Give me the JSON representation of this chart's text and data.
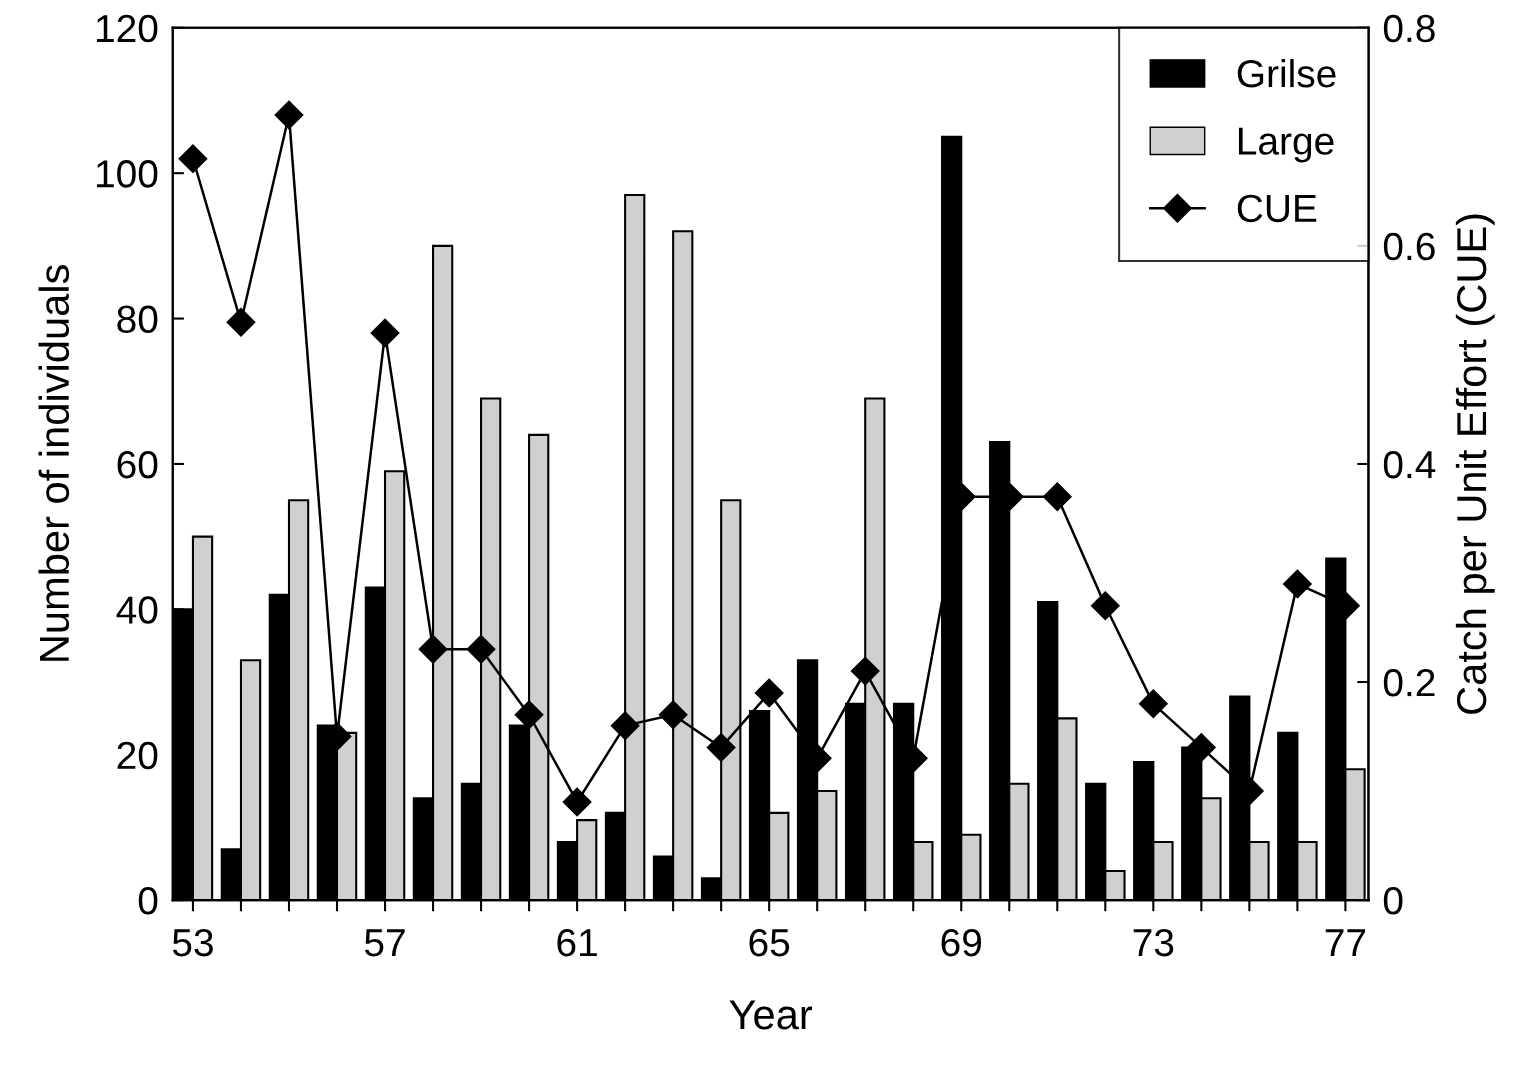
{
  "chart_data": {
    "type": "bar",
    "xlabel": "Year",
    "ylabel": "Number of individuals",
    "y2label": "Catch per Unit Effort (CUE)",
    "x": [
      53,
      54,
      55,
      56,
      57,
      58,
      59,
      60,
      61,
      62,
      63,
      64,
      65,
      66,
      67,
      68,
      69,
      70,
      71,
      72,
      73,
      74,
      75,
      76,
      77
    ],
    "series": [
      {
        "name": "Grilse",
        "color": "#000000",
        "values": [
          40,
          7,
          42,
          24,
          43,
          14,
          16,
          24,
          8,
          12,
          6,
          3,
          26,
          33,
          27,
          27,
          105,
          63,
          41,
          16,
          19,
          21,
          28,
          23,
          47
        ]
      },
      {
        "name": "Large",
        "color": "#d0d0d0",
        "values": [
          50,
          33,
          55,
          23,
          59,
          90,
          69,
          64,
          11,
          97,
          92,
          55,
          12,
          15,
          69,
          8,
          9,
          16,
          25,
          4,
          8,
          14,
          8,
          8,
          18
        ]
      },
      {
        "name": "CUE",
        "type": "line",
        "axis": "y2",
        "color": "#000000",
        "marker": "diamond",
        "line_style": "solid",
        "values": [
          0.68,
          0.53,
          0.72,
          0.15,
          0.52,
          0.23,
          0.23,
          0.17,
          0.09,
          0.16,
          0.17,
          0.14,
          0.19,
          0.13,
          0.21,
          0.13,
          0.37,
          0.37,
          0.37,
          0.27,
          0.18,
          0.14,
          0.1,
          0.29,
          0.27
        ]
      }
    ],
    "xlim": [
      52.58,
      77.48
    ],
    "xticks": [
      53,
      {
        "value": 54,
        "label": null
      },
      {
        "value": 55,
        "label": null
      },
      {
        "value": 56,
        "label": null
      },
      57,
      {
        "value": 58,
        "label": null
      },
      {
        "value": 59,
        "label": null
      },
      {
        "value": 60,
        "label": null
      },
      61,
      {
        "value": 62,
        "label": null
      },
      {
        "value": 63,
        "label": null
      },
      {
        "value": 64,
        "label": null
      },
      65,
      {
        "value": 66,
        "label": null
      },
      {
        "value": 67,
        "label": null
      },
      {
        "value": 68,
        "label": null
      },
      69,
      {
        "value": 70,
        "label": null
      },
      {
        "value": 71,
        "label": null
      },
      {
        "value": 72,
        "label": null
      },
      73,
      {
        "value": 74,
        "label": null
      },
      {
        "value": 75,
        "label": null
      },
      {
        "value": 76,
        "label": null
      },
      77
    ],
    "ylim": [
      0,
      120
    ],
    "yticks": [
      0,
      20,
      40,
      60,
      80,
      100,
      120
    ],
    "y2lim": [
      0,
      0.8
    ],
    "y2ticks": [
      {
        "value": 0,
        "label": "0"
      },
      {
        "value": 0.2,
        "label": "0.2"
      },
      {
        "value": 0.4,
        "label": "0.4"
      },
      {
        "value": 0.6,
        "label": "0.6"
      },
      {
        "value": 0.8,
        "label": "0.8"
      }
    ],
    "grid": false,
    "legend": "top right"
  }
}
